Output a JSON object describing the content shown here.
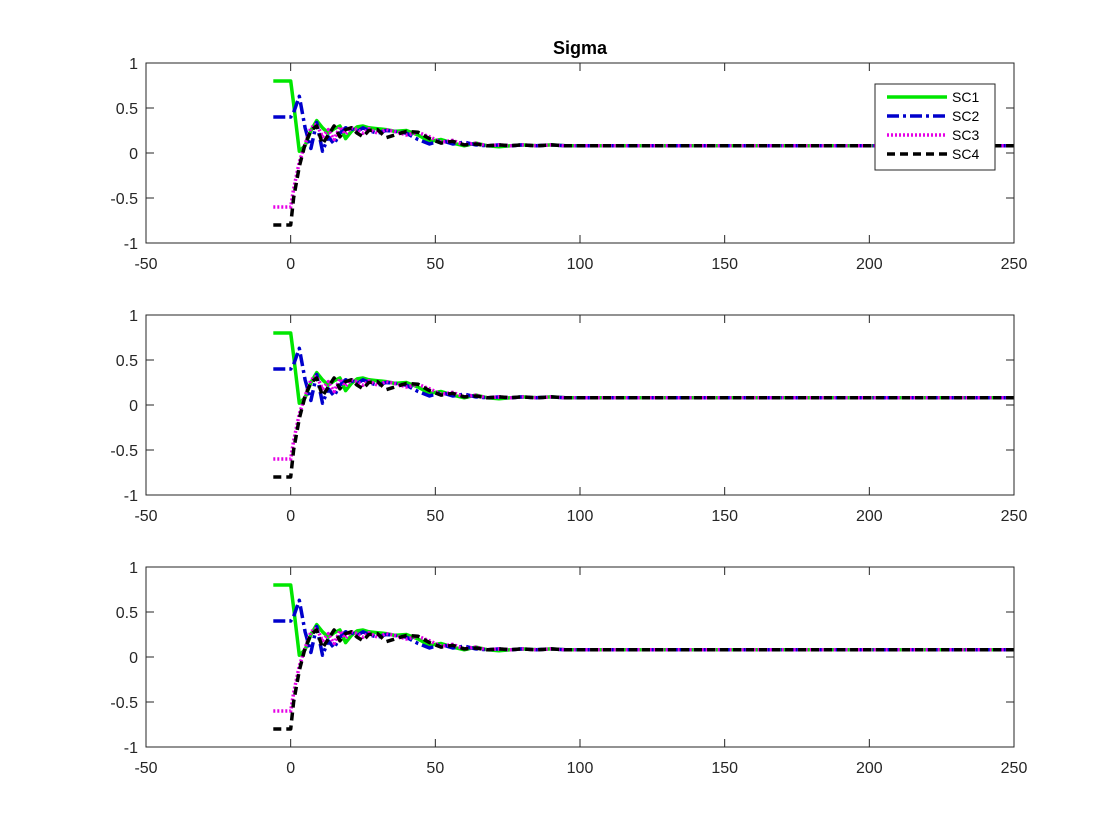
{
  "chart_data": [
    {
      "type": "line",
      "title": "Sigma",
      "xlabel": "",
      "ylabel": "",
      "xlim": [
        -50,
        250
      ],
      "ylim": [
        -1,
        1
      ],
      "xticks": [
        "-50",
        "0",
        "50",
        "100",
        "150",
        "200",
        "250"
      ],
      "yticks": [
        "-1",
        "-0.5",
        "0",
        "0.5",
        "1"
      ],
      "grid": false,
      "legend": {
        "position": "top-right",
        "entries": [
          "SC1",
          "SC2",
          "SC3",
          "SC4"
        ]
      },
      "series": [
        {
          "name": "SC1",
          "color": "#00e600",
          "style": "solid",
          "x": [
            -6,
            0,
            1,
            3,
            5,
            7,
            9,
            11,
            13,
            15,
            17,
            19,
            21,
            23,
            25,
            27,
            30,
            33,
            36,
            40,
            44,
            48,
            52,
            56,
            60,
            64,
            68,
            72,
            76,
            80,
            85,
            90,
            95,
            100,
            250
          ],
          "y": [
            0.8,
            0.8,
            0.55,
            0.02,
            0.08,
            0.25,
            0.36,
            0.28,
            0.22,
            0.27,
            0.3,
            0.16,
            0.24,
            0.29,
            0.3,
            0.28,
            0.27,
            0.26,
            0.24,
            0.25,
            0.2,
            0.13,
            0.15,
            0.11,
            0.08,
            0.11,
            0.08,
            0.07,
            0.08,
            0.09,
            0.08,
            0.09,
            0.08,
            0.08,
            0.08
          ]
        },
        {
          "name": "SC2",
          "color": "#0000cc",
          "style": "dashdot",
          "x": [
            -6,
            0,
            1,
            3,
            5,
            7,
            9,
            11,
            13,
            15,
            17,
            19,
            21,
            23,
            25,
            27,
            30,
            33,
            36,
            40,
            44,
            48,
            52,
            56,
            60,
            64,
            68,
            72,
            76,
            80,
            85,
            90,
            95,
            100,
            250
          ],
          "y": [
            0.4,
            0.4,
            0.45,
            0.63,
            0.28,
            0.05,
            0.34,
            0.02,
            0.18,
            0.1,
            0.22,
            0.28,
            0.27,
            0.24,
            0.28,
            0.25,
            0.22,
            0.25,
            0.24,
            0.22,
            0.15,
            0.1,
            0.14,
            0.1,
            0.12,
            0.09,
            0.08,
            0.09,
            0.08,
            0.09,
            0.08,
            0.09,
            0.08,
            0.08,
            0.08
          ]
        },
        {
          "name": "SC3",
          "color": "#e600e6",
          "style": "dotted",
          "x": [
            -6,
            0,
            1,
            3,
            5,
            7,
            9,
            11,
            13,
            15,
            17,
            19,
            21,
            23,
            25,
            27,
            30,
            33,
            36,
            40,
            44,
            48,
            52,
            56,
            60,
            64,
            68,
            72,
            76,
            80,
            85,
            90,
            95,
            100,
            250
          ],
          "y": [
            -0.6,
            -0.6,
            -0.4,
            -0.1,
            0.1,
            0.28,
            0.32,
            0.18,
            0.26,
            0.15,
            0.29,
            0.21,
            0.28,
            0.26,
            0.22,
            0.27,
            0.22,
            0.26,
            0.24,
            0.2,
            0.23,
            0.18,
            0.12,
            0.14,
            0.09,
            0.11,
            0.08,
            0.09,
            0.08,
            0.09,
            0.08,
            0.09,
            0.08,
            0.08,
            0.08
          ]
        },
        {
          "name": "SC4",
          "color": "#000000",
          "style": "dashed",
          "x": [
            -6,
            0,
            1,
            3,
            5,
            7,
            9,
            11,
            13,
            15,
            17,
            19,
            21,
            23,
            25,
            27,
            30,
            33,
            36,
            40,
            44,
            48,
            52,
            56,
            60,
            64,
            68,
            72,
            76,
            80,
            85,
            90,
            95,
            100,
            250
          ],
          "y": [
            -0.8,
            -0.8,
            -0.5,
            -0.15,
            0.1,
            0.25,
            0.3,
            0.1,
            0.2,
            0.3,
            0.18,
            0.26,
            0.28,
            0.22,
            0.18,
            0.25,
            0.26,
            0.17,
            0.2,
            0.24,
            0.23,
            0.16,
            0.11,
            0.13,
            0.09,
            0.1,
            0.08,
            0.09,
            0.08,
            0.09,
            0.08,
            0.09,
            0.08,
            0.08,
            0.08
          ]
        }
      ]
    },
    {
      "type": "line",
      "title": "",
      "xlabel": "",
      "ylabel": "",
      "xlim": [
        -50,
        250
      ],
      "ylim": [
        -1,
        1
      ],
      "xticks": [
        "-50",
        "0",
        "50",
        "100",
        "150",
        "200",
        "250"
      ],
      "yticks": [
        "-1",
        "-0.5",
        "0",
        "0.5",
        "1"
      ],
      "grid": false,
      "series": [
        {
          "color": "#00e600",
          "style": "solid",
          "x": [
            -6,
            0,
            1,
            3,
            5,
            7,
            9,
            11,
            13,
            15,
            17,
            19,
            21,
            23,
            25,
            27,
            30,
            33,
            36,
            40,
            44,
            48,
            52,
            56,
            60,
            64,
            68,
            72,
            76,
            80,
            85,
            90,
            95,
            100,
            250
          ],
          "y": [
            0.8,
            0.8,
            0.55,
            0.02,
            0.08,
            0.25,
            0.36,
            0.28,
            0.22,
            0.27,
            0.3,
            0.16,
            0.24,
            0.29,
            0.3,
            0.28,
            0.27,
            0.26,
            0.24,
            0.25,
            0.2,
            0.13,
            0.15,
            0.11,
            0.08,
            0.11,
            0.08,
            0.07,
            0.08,
            0.09,
            0.08,
            0.09,
            0.08,
            0.08,
            0.08
          ]
        },
        {
          "color": "#0000cc",
          "style": "dashdot",
          "x": [
            -6,
            0,
            1,
            3,
            5,
            7,
            9,
            11,
            13,
            15,
            17,
            19,
            21,
            23,
            25,
            27,
            30,
            33,
            36,
            40,
            44,
            48,
            52,
            56,
            60,
            64,
            68,
            72,
            76,
            80,
            85,
            90,
            95,
            100,
            250
          ],
          "y": [
            0.4,
            0.4,
            0.45,
            0.63,
            0.28,
            0.05,
            0.34,
            0.02,
            0.18,
            0.1,
            0.22,
            0.28,
            0.27,
            0.24,
            0.28,
            0.25,
            0.22,
            0.25,
            0.24,
            0.22,
            0.15,
            0.1,
            0.14,
            0.1,
            0.12,
            0.09,
            0.08,
            0.09,
            0.08,
            0.09,
            0.08,
            0.09,
            0.08,
            0.08,
            0.08
          ]
        },
        {
          "color": "#e600e6",
          "style": "dotted",
          "x": [
            -6,
            0,
            1,
            3,
            5,
            7,
            9,
            11,
            13,
            15,
            17,
            19,
            21,
            23,
            25,
            27,
            30,
            33,
            36,
            40,
            44,
            48,
            52,
            56,
            60,
            64,
            68,
            72,
            76,
            80,
            85,
            90,
            95,
            100,
            250
          ],
          "y": [
            -0.6,
            -0.6,
            -0.4,
            -0.1,
            0.1,
            0.28,
            0.32,
            0.18,
            0.26,
            0.15,
            0.29,
            0.21,
            0.28,
            0.26,
            0.22,
            0.27,
            0.22,
            0.26,
            0.24,
            0.2,
            0.23,
            0.18,
            0.12,
            0.14,
            0.09,
            0.11,
            0.08,
            0.09,
            0.08,
            0.09,
            0.08,
            0.09,
            0.08,
            0.08,
            0.08
          ]
        },
        {
          "color": "#000000",
          "style": "dashed",
          "x": [
            -6,
            0,
            1,
            3,
            5,
            7,
            9,
            11,
            13,
            15,
            17,
            19,
            21,
            23,
            25,
            27,
            30,
            33,
            36,
            40,
            44,
            48,
            52,
            56,
            60,
            64,
            68,
            72,
            76,
            80,
            85,
            90,
            95,
            100,
            250
          ],
          "y": [
            -0.8,
            -0.8,
            -0.5,
            -0.15,
            0.1,
            0.25,
            0.3,
            0.1,
            0.2,
            0.3,
            0.18,
            0.26,
            0.28,
            0.22,
            0.18,
            0.25,
            0.26,
            0.17,
            0.2,
            0.24,
            0.23,
            0.16,
            0.11,
            0.13,
            0.09,
            0.1,
            0.08,
            0.09,
            0.08,
            0.09,
            0.08,
            0.09,
            0.08,
            0.08,
            0.08
          ]
        }
      ]
    },
    {
      "type": "line",
      "title": "",
      "xlabel": "",
      "ylabel": "",
      "xlim": [
        -50,
        250
      ],
      "ylim": [
        -1,
        1
      ],
      "xticks": [
        "-50",
        "0",
        "50",
        "100",
        "150",
        "200",
        "250"
      ],
      "yticks": [
        "-1",
        "-0.5",
        "0",
        "0.5",
        "1"
      ],
      "grid": false,
      "series": [
        {
          "color": "#00e600",
          "style": "solid",
          "x": [
            -6,
            0,
            1,
            3,
            5,
            7,
            9,
            11,
            13,
            15,
            17,
            19,
            21,
            23,
            25,
            27,
            30,
            33,
            36,
            40,
            44,
            48,
            52,
            56,
            60,
            64,
            68,
            72,
            76,
            80,
            85,
            90,
            95,
            100,
            250
          ],
          "y": [
            0.8,
            0.8,
            0.55,
            0.02,
            0.08,
            0.25,
            0.36,
            0.28,
            0.22,
            0.27,
            0.3,
            0.16,
            0.24,
            0.29,
            0.3,
            0.28,
            0.27,
            0.26,
            0.24,
            0.25,
            0.2,
            0.13,
            0.15,
            0.11,
            0.08,
            0.11,
            0.08,
            0.07,
            0.08,
            0.09,
            0.08,
            0.09,
            0.08,
            0.08,
            0.08
          ]
        },
        {
          "color": "#0000cc",
          "style": "dashdot",
          "x": [
            -6,
            0,
            1,
            3,
            5,
            7,
            9,
            11,
            13,
            15,
            17,
            19,
            21,
            23,
            25,
            27,
            30,
            33,
            36,
            40,
            44,
            48,
            52,
            56,
            60,
            64,
            68,
            72,
            76,
            80,
            85,
            90,
            95,
            100,
            250
          ],
          "y": [
            0.4,
            0.4,
            0.45,
            0.63,
            0.28,
            0.05,
            0.34,
            0.02,
            0.18,
            0.1,
            0.22,
            0.28,
            0.27,
            0.24,
            0.28,
            0.25,
            0.22,
            0.25,
            0.24,
            0.22,
            0.15,
            0.1,
            0.14,
            0.1,
            0.12,
            0.09,
            0.08,
            0.09,
            0.08,
            0.09,
            0.08,
            0.09,
            0.08,
            0.08,
            0.08
          ]
        },
        {
          "color": "#e600e6",
          "style": "dotted",
          "x": [
            -6,
            0,
            1,
            3,
            5,
            7,
            9,
            11,
            13,
            15,
            17,
            19,
            21,
            23,
            25,
            27,
            30,
            33,
            36,
            40,
            44,
            48,
            52,
            56,
            60,
            64,
            68,
            72,
            76,
            80,
            85,
            90,
            95,
            100,
            250
          ],
          "y": [
            -0.6,
            -0.6,
            -0.4,
            -0.1,
            0.1,
            0.28,
            0.32,
            0.18,
            0.26,
            0.15,
            0.29,
            0.21,
            0.28,
            0.26,
            0.22,
            0.27,
            0.22,
            0.26,
            0.24,
            0.2,
            0.23,
            0.18,
            0.12,
            0.14,
            0.09,
            0.11,
            0.08,
            0.09,
            0.08,
            0.09,
            0.08,
            0.09,
            0.08,
            0.08,
            0.08
          ]
        },
        {
          "color": "#000000",
          "style": "dashed",
          "x": [
            -6,
            0,
            1,
            3,
            5,
            7,
            9,
            11,
            13,
            15,
            17,
            19,
            21,
            23,
            25,
            27,
            30,
            33,
            36,
            40,
            44,
            48,
            52,
            56,
            60,
            64,
            68,
            72,
            76,
            80,
            85,
            90,
            95,
            100,
            250
          ],
          "y": [
            -0.8,
            -0.8,
            -0.5,
            -0.15,
            0.1,
            0.25,
            0.3,
            0.1,
            0.2,
            0.3,
            0.18,
            0.26,
            0.28,
            0.22,
            0.18,
            0.25,
            0.26,
            0.17,
            0.2,
            0.24,
            0.23,
            0.16,
            0.11,
            0.13,
            0.09,
            0.1,
            0.08,
            0.09,
            0.08,
            0.09,
            0.08,
            0.09,
            0.08,
            0.08,
            0.08
          ]
        }
      ]
    }
  ]
}
